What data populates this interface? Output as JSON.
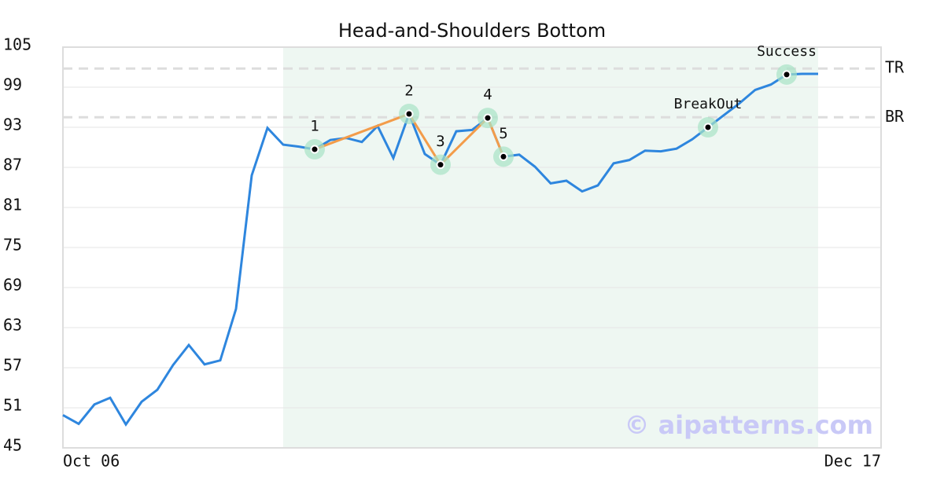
{
  "chart_data": {
    "type": "line",
    "title": "Head-and-Shoulders Bottom",
    "categories": [
      "Oct 06",
      null,
      null,
      null,
      null,
      null,
      null,
      null,
      null,
      null,
      null,
      null,
      null,
      null,
      null,
      null,
      null,
      null,
      null,
      null,
      null,
      null,
      null,
      null,
      null,
      null,
      null,
      null,
      null,
      null,
      null,
      null,
      null,
      null,
      null,
      null,
      null,
      null,
      null,
      null,
      null,
      null,
      null,
      null,
      null,
      null,
      null,
      null,
      null,
      null,
      null,
      null,
      "Dec 17"
    ],
    "values": [
      49.9,
      48.6,
      51.5,
      52.5,
      48.5,
      51.9,
      53.7,
      57.4,
      60.4,
      57.5,
      58.1,
      65.8,
      85.8,
      92.9,
      90.4,
      90.1,
      89.7,
      91.1,
      91.4,
      90.8,
      93.2,
      88.4,
      95.0,
      89.0,
      87.4,
      92.4,
      92.6,
      94.4,
      88.6,
      88.9,
      87.1,
      84.6,
      85.0,
      83.4,
      84.3,
      87.6,
      88.1,
      89.5,
      89.4,
      89.8,
      91.2,
      93.0,
      94.8,
      96.6,
      98.6,
      99.4,
      100.9,
      101.0,
      101.0,
      null,
      null,
      null,
      null
    ],
    "color": "#2e86de",
    "ylim": [
      45,
      105
    ],
    "yticks": [
      45,
      51,
      57,
      63,
      69,
      75,
      81,
      87,
      93,
      99,
      105
    ],
    "grid": true,
    "pattern_span": [
      14,
      48
    ],
    "pattern_color": "#f39c4a",
    "annotations": [
      {
        "label": "1",
        "index": 16,
        "value": 89.7
      },
      {
        "label": "2",
        "index": 22,
        "value": 95.0
      },
      {
        "label": "3",
        "index": 24,
        "value": 87.4
      },
      {
        "label": "4",
        "index": 27,
        "value": 94.4
      },
      {
        "label": "5",
        "index": 28,
        "value": 88.6
      },
      {
        "label": "BreakOut",
        "index": 41,
        "value": 93.0
      },
      {
        "label": "Success",
        "index": 46,
        "value": 100.9
      }
    ],
    "levels": [
      {
        "label": "TR",
        "value": 101.8
      },
      {
        "label": "BR",
        "value": 94.5
      }
    ],
    "watermark": "© aipatterns.com"
  }
}
